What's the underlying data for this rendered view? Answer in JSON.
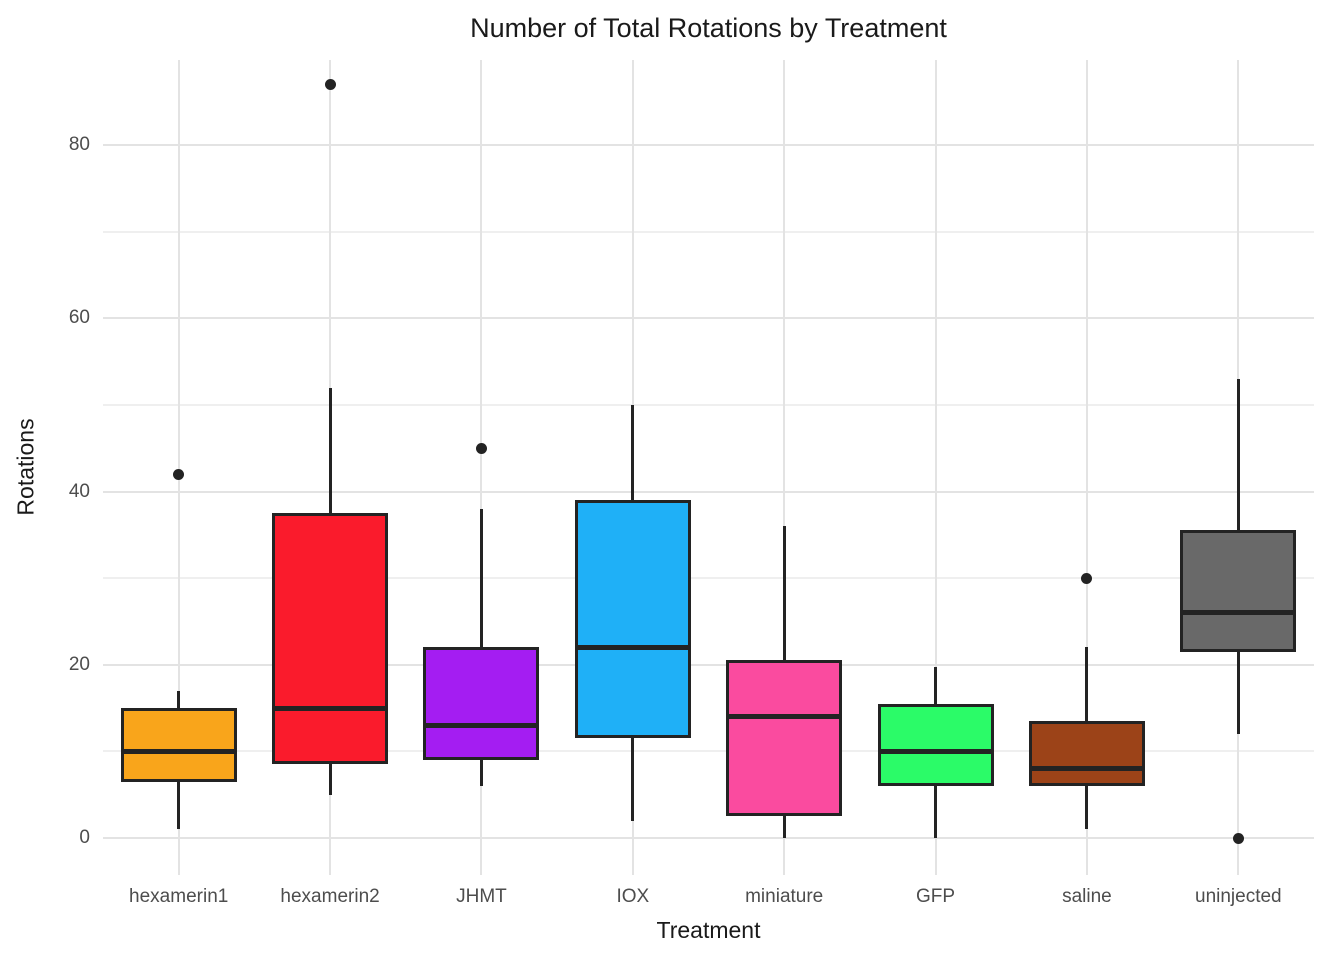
{
  "colors": {
    "background": "#ffffff",
    "grid_major": "#e3e3e3",
    "grid_minor": "#efefef",
    "stroke": "#232323",
    "axis_text": "#4d4d4d",
    "title_text": "#1a1a1a"
  },
  "chart_data": {
    "type": "boxplot",
    "title": "Number of Total Rotations by Treatment",
    "xlabel": "Treatment",
    "ylabel": "Rotations",
    "ylim": [
      -4.3,
      89.8
    ],
    "y_major_ticks": [
      0,
      20,
      40,
      60,
      80
    ],
    "y_minor_ticks": [
      10,
      30,
      50,
      70
    ],
    "grid": true,
    "legend": false,
    "categories": [
      "hexamerin1",
      "hexamerin2",
      "JHMT",
      "IOX",
      "miniature",
      "GFP",
      "saline",
      "uninjected"
    ],
    "series": [
      {
        "name": "hexamerin1",
        "color": "#F9A51B",
        "min": 1,
        "q1": 6.5,
        "median": 10,
        "q3": 15,
        "max": 17,
        "outliers": [
          42
        ]
      },
      {
        "name": "hexamerin2",
        "color": "#FA1B2C",
        "min": 5,
        "q1": 8.5,
        "median": 15,
        "q3": 37.5,
        "max": 52,
        "outliers": [
          87
        ]
      },
      {
        "name": "JHMT",
        "color": "#A41DF2",
        "min": 6,
        "q1": 9,
        "median": 13,
        "q3": 22,
        "max": 38,
        "outliers": [
          45
        ]
      },
      {
        "name": "IOX",
        "color": "#1FB0F7",
        "min": 2,
        "q1": 11.5,
        "median": 22,
        "q3": 39,
        "max": 50,
        "outliers": []
      },
      {
        "name": "miniature",
        "color": "#FA4B9F",
        "min": 0,
        "q1": 2.5,
        "median": 14,
        "q3": 20.5,
        "max": 36,
        "outliers": []
      },
      {
        "name": "GFP",
        "color": "#2BFB68",
        "min": 0,
        "q1": 6,
        "median": 10,
        "q3": 15.5,
        "max": 19.7,
        "outliers": []
      },
      {
        "name": "saline",
        "color": "#9C4318",
        "min": 1,
        "q1": 6,
        "median": 8,
        "q3": 13.5,
        "max": 22,
        "outliers": [
          30
        ]
      },
      {
        "name": "uninjected",
        "color": "#696969",
        "min": 12,
        "q1": 21.5,
        "median": 26,
        "q3": 35.5,
        "max": 53,
        "outliers": [
          0
        ]
      }
    ]
  }
}
